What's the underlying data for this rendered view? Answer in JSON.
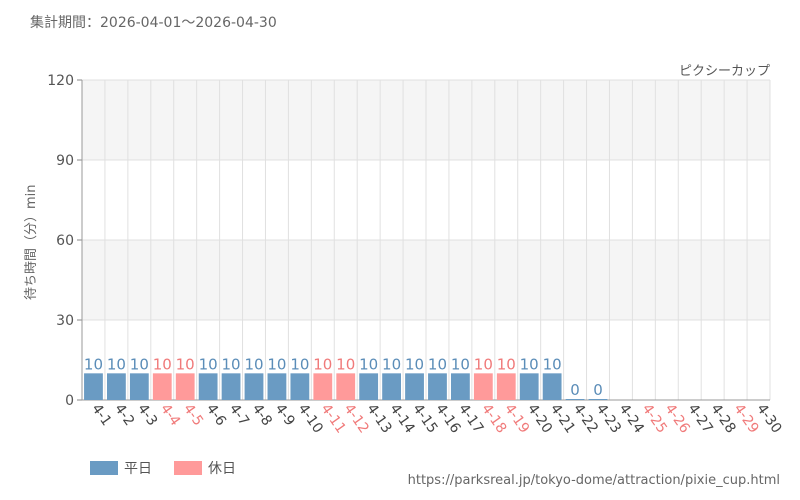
{
  "header": {
    "period_label": "集計期間：2026-04-01～2026-04-30",
    "attraction_name": "ピクシーカップ"
  },
  "footer": {
    "source_url": "https://parksreal.jp/tokyo-dome/attraction/pixie_cup.html"
  },
  "colors": {
    "weekday": "#6a9bc3",
    "holiday": "#ff9a9a",
    "weekday_text": "#5b8db8",
    "holiday_text": "#f07a7a",
    "band": "#f5f5f5",
    "grid": "#e0e0e0"
  },
  "chart_data": {
    "type": "bar",
    "title": "",
    "xlabel": "",
    "ylabel": "待ち時間（分）min",
    "ylim": [
      0,
      120
    ],
    "yticks": [
      0,
      30,
      60,
      90,
      120
    ],
    "legend_position": "bottom-left",
    "legend": [
      {
        "key": "weekday",
        "label": "平日"
      },
      {
        "key": "holiday",
        "label": "休日"
      }
    ],
    "categories": [
      "4-1",
      "4-2",
      "4-3",
      "4-4",
      "4-5",
      "4-6",
      "4-7",
      "4-8",
      "4-9",
      "4-10",
      "4-11",
      "4-12",
      "4-13",
      "4-14",
      "4-15",
      "4-16",
      "4-17",
      "4-18",
      "4-19",
      "4-20",
      "4-21",
      "4-22",
      "4-23",
      "4-24",
      "4-25",
      "4-26",
      "4-27",
      "4-28",
      "4-29",
      "4-30"
    ],
    "values": [
      10,
      10,
      10,
      10,
      10,
      10,
      10,
      10,
      10,
      10,
      10,
      10,
      10,
      10,
      10,
      10,
      10,
      10,
      10,
      10,
      10,
      0,
      0,
      null,
      null,
      null,
      null,
      null,
      null,
      null
    ],
    "day_type": [
      "weekday",
      "weekday",
      "weekday",
      "holiday",
      "holiday",
      "weekday",
      "weekday",
      "weekday",
      "weekday",
      "weekday",
      "holiday",
      "holiday",
      "weekday",
      "weekday",
      "weekday",
      "weekday",
      "weekday",
      "holiday",
      "holiday",
      "weekday",
      "weekday",
      "weekday",
      "weekday",
      "weekday",
      "holiday",
      "holiday",
      "weekday",
      "weekday",
      "holiday",
      "weekday"
    ]
  }
}
